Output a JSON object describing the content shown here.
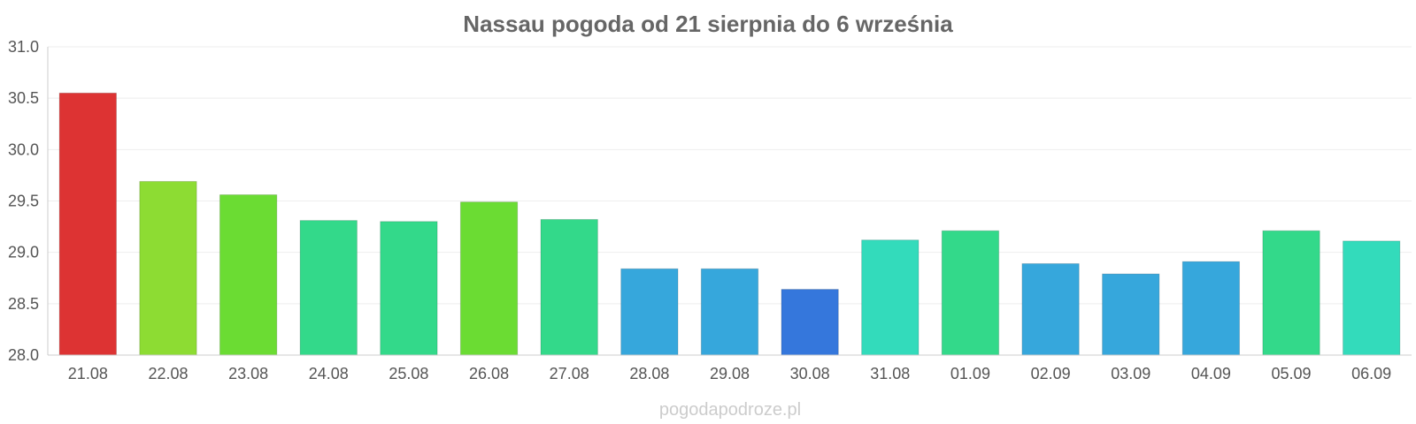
{
  "chart_data": {
    "type": "bar",
    "title": "Nassau pogoda od 21 sierpnia do 6 września",
    "xlabel": "",
    "ylabel": "",
    "ylim": [
      28.0,
      31.0
    ],
    "yticks": [
      "28.0",
      "28.5",
      "29.0",
      "29.5",
      "30.0",
      "30.5",
      "31.0"
    ],
    "grid": true,
    "categories": [
      "21.08",
      "22.08",
      "23.08",
      "24.08",
      "25.08",
      "26.08",
      "27.08",
      "28.08",
      "29.08",
      "30.08",
      "31.08",
      "01.09",
      "02.09",
      "03.09",
      "04.09",
      "05.09",
      "06.09"
    ],
    "values": [
      30.55,
      29.69,
      29.56,
      29.31,
      29.3,
      29.49,
      29.32,
      28.84,
      28.84,
      28.64,
      29.12,
      29.21,
      28.89,
      28.79,
      28.91,
      29.21,
      29.11
    ],
    "colors": [
      "#dd3333",
      "#8ddc33",
      "#6bdc33",
      "#33d98a",
      "#33d98a",
      "#6bdc33",
      "#33d98a",
      "#36a7dc",
      "#36a7dc",
      "#3577dc",
      "#33dbbb",
      "#33d98a",
      "#36a7dc",
      "#36a7dc",
      "#36a7dc",
      "#33d98a",
      "#33dbbb"
    ]
  },
  "watermark": "pogodapodroze.pl"
}
